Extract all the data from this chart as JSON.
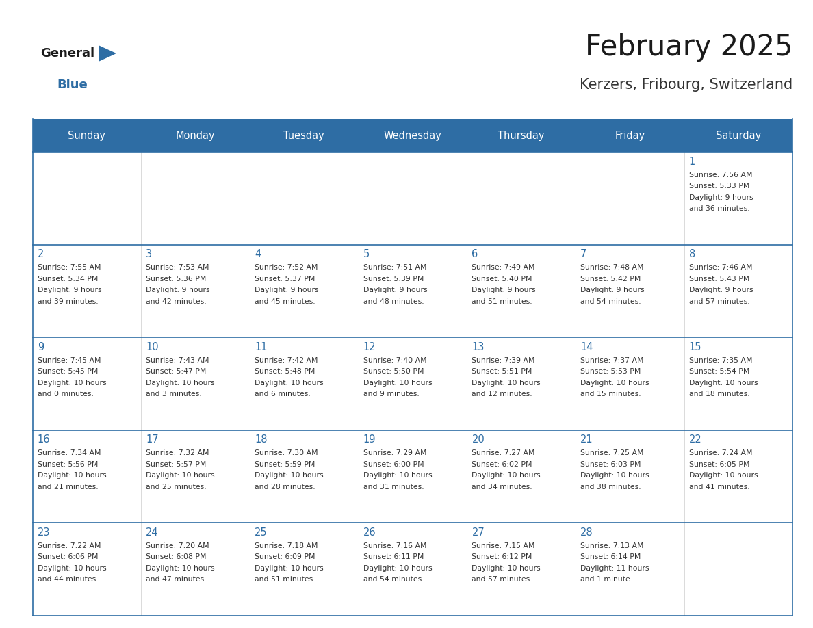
{
  "title": "February 2025",
  "subtitle": "Kerzers, Fribourg, Switzerland",
  "days_of_week": [
    "Sunday",
    "Monday",
    "Tuesday",
    "Wednesday",
    "Thursday",
    "Friday",
    "Saturday"
  ],
  "header_bg": "#2E6DA4",
  "header_text": "#FFFFFF",
  "border_color": "#2E6DA4",
  "text_color": "#333333",
  "day_number_color": "#2E6DA4",
  "logo_general_color": "#1a1a1a",
  "logo_blue_color": "#2E6DA4",
  "calendar_data": [
    {
      "day": 1,
      "col": 6,
      "row": 0,
      "sunrise": "7:56 AM",
      "sunset": "5:33 PM",
      "daylight": "9 hours and 36 minutes."
    },
    {
      "day": 2,
      "col": 0,
      "row": 1,
      "sunrise": "7:55 AM",
      "sunset": "5:34 PM",
      "daylight": "9 hours and 39 minutes."
    },
    {
      "day": 3,
      "col": 1,
      "row": 1,
      "sunrise": "7:53 AM",
      "sunset": "5:36 PM",
      "daylight": "9 hours and 42 minutes."
    },
    {
      "day": 4,
      "col": 2,
      "row": 1,
      "sunrise": "7:52 AM",
      "sunset": "5:37 PM",
      "daylight": "9 hours and 45 minutes."
    },
    {
      "day": 5,
      "col": 3,
      "row": 1,
      "sunrise": "7:51 AM",
      "sunset": "5:39 PM",
      "daylight": "9 hours and 48 minutes."
    },
    {
      "day": 6,
      "col": 4,
      "row": 1,
      "sunrise": "7:49 AM",
      "sunset": "5:40 PM",
      "daylight": "9 hours and 51 minutes."
    },
    {
      "day": 7,
      "col": 5,
      "row": 1,
      "sunrise": "7:48 AM",
      "sunset": "5:42 PM",
      "daylight": "9 hours and 54 minutes."
    },
    {
      "day": 8,
      "col": 6,
      "row": 1,
      "sunrise": "7:46 AM",
      "sunset": "5:43 PM",
      "daylight": "9 hours and 57 minutes."
    },
    {
      "day": 9,
      "col": 0,
      "row": 2,
      "sunrise": "7:45 AM",
      "sunset": "5:45 PM",
      "daylight": "10 hours and 0 minutes."
    },
    {
      "day": 10,
      "col": 1,
      "row": 2,
      "sunrise": "7:43 AM",
      "sunset": "5:47 PM",
      "daylight": "10 hours and 3 minutes."
    },
    {
      "day": 11,
      "col": 2,
      "row": 2,
      "sunrise": "7:42 AM",
      "sunset": "5:48 PM",
      "daylight": "10 hours and 6 minutes."
    },
    {
      "day": 12,
      "col": 3,
      "row": 2,
      "sunrise": "7:40 AM",
      "sunset": "5:50 PM",
      "daylight": "10 hours and 9 minutes."
    },
    {
      "day": 13,
      "col": 4,
      "row": 2,
      "sunrise": "7:39 AM",
      "sunset": "5:51 PM",
      "daylight": "10 hours and 12 minutes."
    },
    {
      "day": 14,
      "col": 5,
      "row": 2,
      "sunrise": "7:37 AM",
      "sunset": "5:53 PM",
      "daylight": "10 hours and 15 minutes."
    },
    {
      "day": 15,
      "col": 6,
      "row": 2,
      "sunrise": "7:35 AM",
      "sunset": "5:54 PM",
      "daylight": "10 hours and 18 minutes."
    },
    {
      "day": 16,
      "col": 0,
      "row": 3,
      "sunrise": "7:34 AM",
      "sunset": "5:56 PM",
      "daylight": "10 hours and 21 minutes."
    },
    {
      "day": 17,
      "col": 1,
      "row": 3,
      "sunrise": "7:32 AM",
      "sunset": "5:57 PM",
      "daylight": "10 hours and 25 minutes."
    },
    {
      "day": 18,
      "col": 2,
      "row": 3,
      "sunrise": "7:30 AM",
      "sunset": "5:59 PM",
      "daylight": "10 hours and 28 minutes."
    },
    {
      "day": 19,
      "col": 3,
      "row": 3,
      "sunrise": "7:29 AM",
      "sunset": "6:00 PM",
      "daylight": "10 hours and 31 minutes."
    },
    {
      "day": 20,
      "col": 4,
      "row": 3,
      "sunrise": "7:27 AM",
      "sunset": "6:02 PM",
      "daylight": "10 hours and 34 minutes."
    },
    {
      "day": 21,
      "col": 5,
      "row": 3,
      "sunrise": "7:25 AM",
      "sunset": "6:03 PM",
      "daylight": "10 hours and 38 minutes."
    },
    {
      "day": 22,
      "col": 6,
      "row": 3,
      "sunrise": "7:24 AM",
      "sunset": "6:05 PM",
      "daylight": "10 hours and 41 minutes."
    },
    {
      "day": 23,
      "col": 0,
      "row": 4,
      "sunrise": "7:22 AM",
      "sunset": "6:06 PM",
      "daylight": "10 hours and 44 minutes."
    },
    {
      "day": 24,
      "col": 1,
      "row": 4,
      "sunrise": "7:20 AM",
      "sunset": "6:08 PM",
      "daylight": "10 hours and 47 minutes."
    },
    {
      "day": 25,
      "col": 2,
      "row": 4,
      "sunrise": "7:18 AM",
      "sunset": "6:09 PM",
      "daylight": "10 hours and 51 minutes."
    },
    {
      "day": 26,
      "col": 3,
      "row": 4,
      "sunrise": "7:16 AM",
      "sunset": "6:11 PM",
      "daylight": "10 hours and 54 minutes."
    },
    {
      "day": 27,
      "col": 4,
      "row": 4,
      "sunrise": "7:15 AM",
      "sunset": "6:12 PM",
      "daylight": "10 hours and 57 minutes."
    },
    {
      "day": 28,
      "col": 5,
      "row": 4,
      "sunrise": "7:13 AM",
      "sunset": "6:14 PM",
      "daylight": "11 hours and 1 minute."
    }
  ]
}
